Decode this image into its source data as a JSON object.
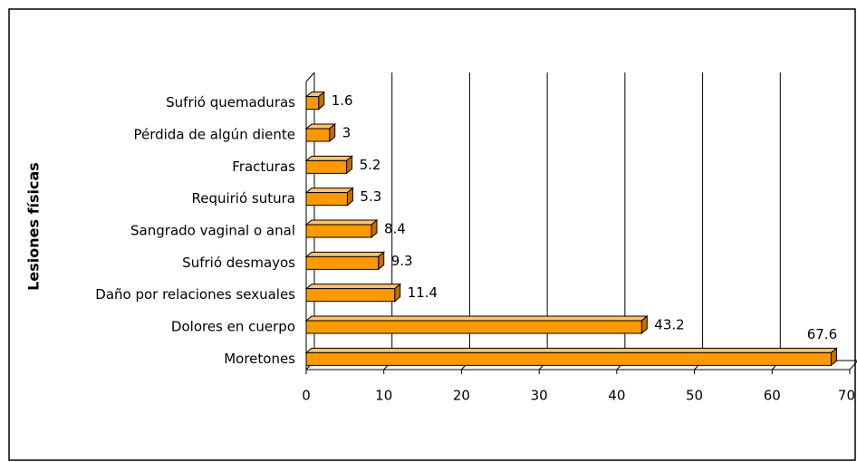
{
  "chart_data": {
    "type": "bar",
    "orientation": "horizontal",
    "three_d": true,
    "y_axis_label": "Lesiones físicas",
    "categories": [
      "Sufrió quemaduras",
      "Pérdida de algún diente",
      "Fracturas",
      "Requirió sutura",
      "Sangrado vaginal o anal",
      "Sufrió desmayos",
      "Daño por relaciones sexuales",
      "Dolores en cuerpo",
      "Moretones"
    ],
    "values": [
      1.6,
      3,
      5.2,
      5.3,
      8.4,
      9.3,
      11.4,
      43.2,
      67.6
    ],
    "color": "#ff9900",
    "xlim": [
      0,
      70
    ],
    "xticks": [
      0,
      10,
      20,
      30,
      40,
      50,
      60,
      70
    ],
    "grid": true
  }
}
